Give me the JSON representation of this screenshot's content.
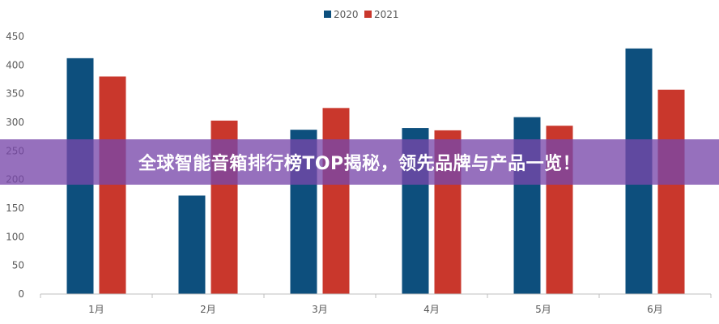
{
  "colors": {
    "series2020": "#0d4f7d",
    "series2021": "#c9372c",
    "banner": "#7848aa"
  },
  "banner": {
    "text": "全球智能音箱排行榜TOP揭秘，领先品牌与产品一览！"
  },
  "chart_data": {
    "type": "bar",
    "categories": [
      "1月",
      "2月",
      "3月",
      "4月",
      "5月",
      "6月"
    ],
    "series": [
      {
        "name": "2020",
        "values": [
          412,
          172,
          287,
          290,
          309,
          429
        ]
      },
      {
        "name": "2021",
        "values": [
          380,
          303,
          325,
          286,
          294,
          357
        ]
      }
    ],
    "y_ticks": [
      0,
      50,
      100,
      150,
      200,
      250,
      300,
      350,
      400,
      450
    ],
    "ylim": [
      0,
      450
    ],
    "legend": "top-center",
    "grid": false,
    "title": "",
    "xlabel": "",
    "ylabel": ""
  }
}
